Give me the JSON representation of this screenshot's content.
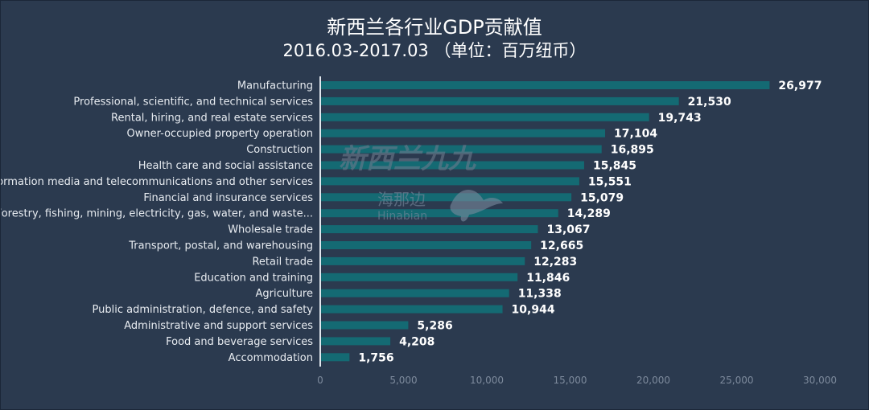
{
  "chart_data": {
    "type": "bar",
    "orientation": "horizontal",
    "title": "新西兰各行业GDP贡献值",
    "subtitle": "2016.03-2017.03 （单位：百万纽币）",
    "xlabel": "",
    "ylabel": "",
    "xlim": [
      0,
      30000
    ],
    "xticks": [
      0,
      5000,
      10000,
      15000,
      20000,
      25000,
      30000
    ],
    "xtick_labels": [
      "0",
      "5,000",
      "10,000",
      "15,000",
      "20,000",
      "25,000",
      "30,000"
    ],
    "grid": false,
    "categories": [
      "Manufacturing",
      "Professional, scientific, and technical services",
      "Rental, hiring, and real estate services",
      "Owner-occupied property operation",
      "Construction",
      "Health care and social assistance",
      "Information media and telecommunications and other services",
      "Financial and insurance services",
      "Forestry, fishing, mining, electricity, gas, water, and waste...",
      "Wholesale trade",
      "Transport, postal, and warehousing",
      "Retail trade",
      "Education and training",
      "Agriculture",
      "Public administration, defence, and safety",
      "Administrative and support services",
      "Food and beverage services",
      "Accommodation"
    ],
    "values": [
      26977,
      21530,
      19743,
      17104,
      16895,
      15845,
      15551,
      15079,
      14289,
      13067,
      12665,
      12283,
      11846,
      11338,
      10944,
      5286,
      4208,
      1756
    ],
    "value_labels": [
      "26,977",
      "21,530",
      "19,743",
      "17,104",
      "16,895",
      "15,845",
      "15,551",
      "15,079",
      "14,289",
      "13,067",
      "12,665",
      "12,283",
      "11,846",
      "11,338",
      "10,944",
      "5,286",
      "4,208",
      "1,756"
    ]
  },
  "colors": {
    "background": "#2b3a4f",
    "bar": "#146a73",
    "text": "#ffffff",
    "tick": "#7d8a9c"
  },
  "watermark": {
    "text_cn": "新西兰九九",
    "text_cn2": "海那边",
    "text_en": "Hinabian"
  }
}
